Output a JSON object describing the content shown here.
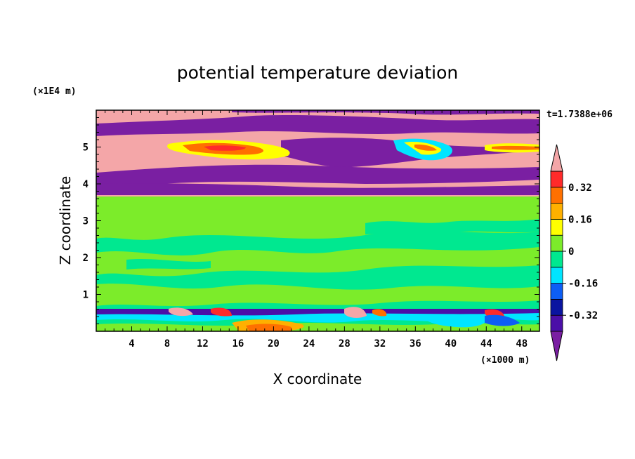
{
  "chart_data": {
    "type": "heatmap",
    "title": "potential temperature deviation",
    "xlabel": "X coordinate",
    "ylabel": "Z coordinate",
    "x_units": "(×1000 m)",
    "y_units": "(×1E4 m)",
    "time_label": "t=1.7388e+06",
    "xlim": [
      0,
      50
    ],
    "ylim": [
      0,
      6
    ],
    "x_ticks": [
      4,
      8,
      12,
      16,
      20,
      24,
      28,
      32,
      36,
      40,
      44,
      48
    ],
    "y_ticks": [
      1,
      2,
      3,
      4,
      5
    ],
    "colorbar": {
      "levels": [
        -0.4,
        -0.32,
        -0.24,
        -0.16,
        -0.08,
        0,
        0.08,
        0.16,
        0.24,
        0.32,
        0.4
      ],
      "tick_labels": [
        "0.32",
        "0.16",
        "0",
        "-0.16",
        "-0.32"
      ],
      "tick_values": [
        0.32,
        0.16,
        0,
        -0.16,
        -0.32
      ],
      "colors": [
        "#7a1fa2",
        "#4b0fa8",
        "#0a14a0",
        "#0d5ef5",
        "#00e5ff",
        "#00e890",
        "#7cec2a",
        "#ffff00",
        "#ffb000",
        "#ff7000",
        "#ff2a2a",
        "#f4a6a8"
      ]
    }
  }
}
